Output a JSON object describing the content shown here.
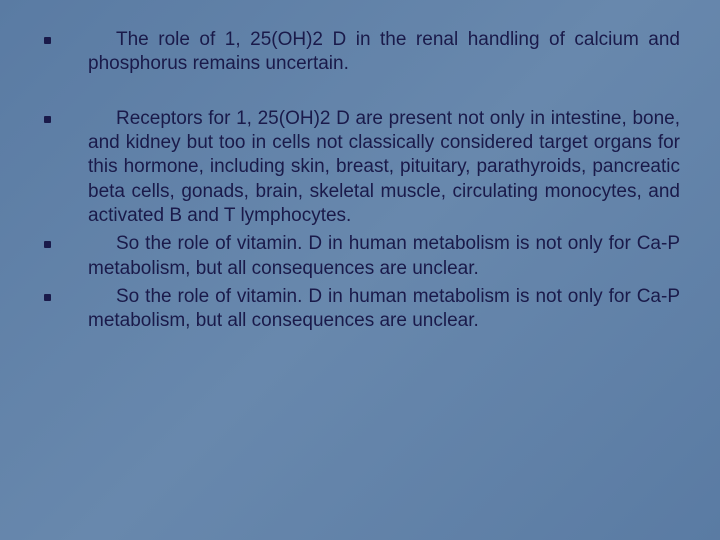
{
  "slide": {
    "background_gradient": [
      "#5a7ba3",
      "#6888ad",
      "#5a7ba3"
    ],
    "text_color": "#1a1a4a",
    "font_family": "Comic Sans MS",
    "font_size_pt": 19,
    "bullets": [
      "The role of 1, 25(OH)2 D in the renal handling of calcium and phosphorus remains uncertain.",
      "Receptors for 1, 25(OH)2 D are present not only in intestine, bone, and kidney but too in cells not classically considered target organs for this hormone, including skin, breast, pituitary, parathyroids, pancreatic beta cells, gonads, brain, skeletal muscle, circulating monocytes, and activated B and T lymphocytes.",
      "So the role of vitamin. D in human metabolism is not only for Ca-P metabolism, but all consequences are unclear.",
      "So the role of vitamin. D in human metabolism is not only for Ca-P metabolism, but all consequences are unclear."
    ],
    "bullet_groups": [
      [
        0
      ],
      [
        1,
        2,
        3
      ]
    ]
  }
}
